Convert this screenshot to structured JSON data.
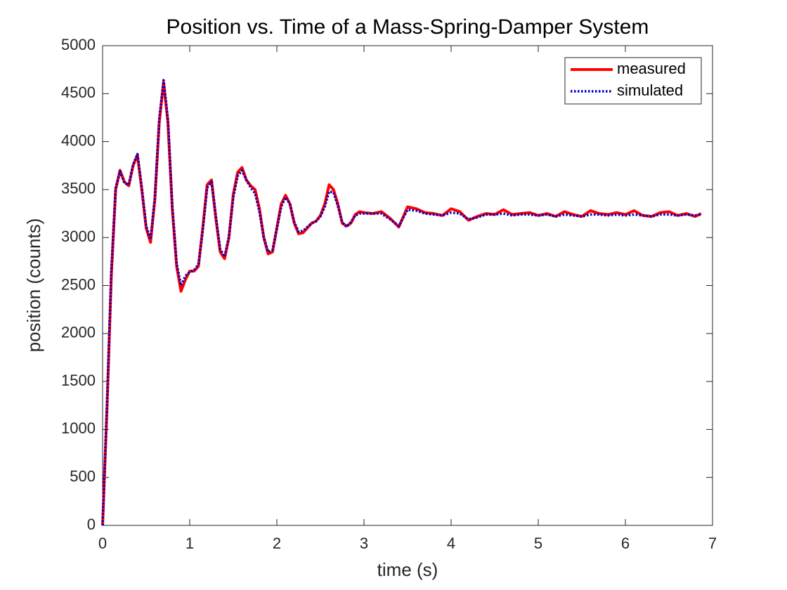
{
  "chart_data": {
    "type": "line",
    "title": "Position vs. Time of a Mass-Spring-Damper System",
    "xlabel": "time (s)",
    "ylabel": "position (counts)",
    "x": [
      0,
      0.05,
      0.1,
      0.15,
      0.2,
      0.25,
      0.3,
      0.35,
      0.4,
      0.45,
      0.5,
      0.55,
      0.6,
      0.65,
      0.7,
      0.75,
      0.8,
      0.85,
      0.9,
      0.95,
      1.0,
      1.05,
      1.1,
      1.15,
      1.2,
      1.25,
      1.3,
      1.35,
      1.4,
      1.45,
      1.5,
      1.55,
      1.6,
      1.65,
      1.7,
      1.75,
      1.8,
      1.85,
      1.9,
      1.95,
      2.0,
      2.05,
      2.1,
      2.15,
      2.2,
      2.25,
      2.3,
      2.35,
      2.4,
      2.45,
      2.5,
      2.55,
      2.6,
      2.65,
      2.7,
      2.75,
      2.8,
      2.85,
      2.9,
      2.95,
      3.0,
      3.1,
      3.2,
      3.3,
      3.4,
      3.5,
      3.6,
      3.7,
      3.8,
      3.9,
      4.0,
      4.1,
      4.2,
      4.3,
      4.4,
      4.5,
      4.6,
      4.7,
      4.8,
      4.9,
      5.0,
      5.1,
      5.2,
      5.3,
      5.4,
      5.5,
      5.6,
      5.7,
      5.8,
      5.9,
      6.0,
      6.1,
      6.2,
      6.3,
      6.4,
      6.5,
      6.6,
      6.7,
      6.8,
      6.87
    ],
    "series": [
      {
        "name": "measured",
        "color": "#ff0000",
        "style": "solid",
        "values": [
          0,
          1200,
          2600,
          3500,
          3700,
          3580,
          3540,
          3750,
          3860,
          3500,
          3100,
          2950,
          3400,
          4200,
          4620,
          4200,
          3300,
          2700,
          2440,
          2560,
          2650,
          2650,
          2700,
          3100,
          3550,
          3600,
          3200,
          2850,
          2780,
          3000,
          3450,
          3680,
          3730,
          3600,
          3540,
          3500,
          3300,
          3000,
          2830,
          2850,
          3100,
          3350,
          3440,
          3350,
          3150,
          3040,
          3050,
          3100,
          3150,
          3170,
          3230,
          3350,
          3550,
          3500,
          3350,
          3150,
          3120,
          3150,
          3240,
          3270,
          3260,
          3250,
          3270,
          3200,
          3110,
          3320,
          3300,
          3260,
          3250,
          3230,
          3300,
          3270,
          3180,
          3220,
          3250,
          3240,
          3290,
          3240,
          3250,
          3260,
          3230,
          3250,
          3220,
          3270,
          3240,
          3220,
          3280,
          3250,
          3240,
          3260,
          3240,
          3280,
          3230,
          3220,
          3260,
          3270,
          3230,
          3250,
          3220,
          3250
        ]
      },
      {
        "name": "simulated",
        "color": "#0000cc",
        "style": "dotted",
        "values": [
          0,
          1250,
          2650,
          3520,
          3690,
          3570,
          3550,
          3760,
          3870,
          3520,
          3120,
          2980,
          3420,
          4230,
          4640,
          4230,
          3330,
          2730,
          2500,
          2600,
          2640,
          2660,
          2720,
          3080,
          3520,
          3580,
          3220,
          2880,
          2800,
          3010,
          3420,
          3640,
          3700,
          3600,
          3520,
          3460,
          3270,
          3000,
          2850,
          2870,
          3090,
          3320,
          3420,
          3350,
          3160,
          3060,
          3070,
          3110,
          3150,
          3170,
          3220,
          3320,
          3480,
          3470,
          3330,
          3160,
          3110,
          3160,
          3230,
          3250,
          3250,
          3250,
          3250,
          3190,
          3120,
          3290,
          3280,
          3250,
          3240,
          3230,
          3260,
          3250,
          3190,
          3210,
          3240,
          3240,
          3250,
          3230,
          3240,
          3240,
          3230,
          3240,
          3220,
          3240,
          3230,
          3220,
          3240,
          3240,
          3230,
          3240,
          3230,
          3240,
          3230,
          3220,
          3240,
          3240,
          3230,
          3240,
          3230,
          3240
        ]
      }
    ],
    "xlim": [
      0,
      7
    ],
    "xticks": [
      0,
      1,
      2,
      3,
      4,
      5,
      6,
      7
    ],
    "ylim": [
      0,
      5000
    ],
    "yticks": [
      0,
      500,
      1000,
      1500,
      2000,
      2500,
      3000,
      3500,
      4000,
      4500,
      5000
    ],
    "grid": false,
    "legend": "northeast"
  }
}
